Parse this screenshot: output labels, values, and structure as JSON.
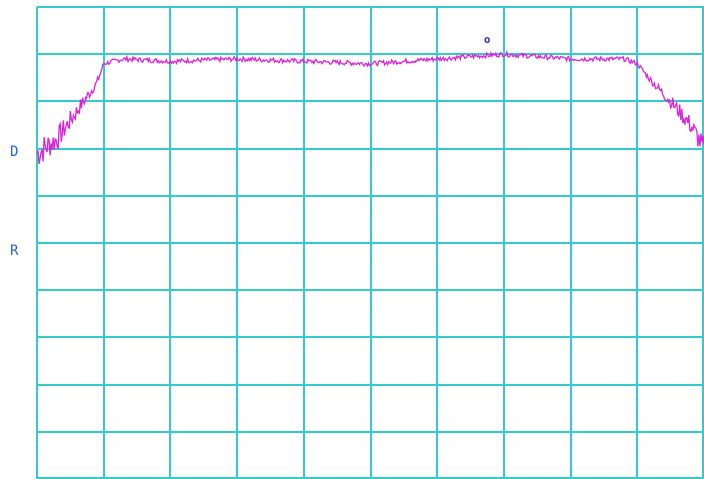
{
  "colors": {
    "background": "#ffffff",
    "grid": "#33cccc",
    "trace": "#dd22dd",
    "marker": "#2233bb",
    "label": "#2266cc"
  },
  "labels": {
    "left_1": "D",
    "left_2": "R"
  },
  "marker": {
    "symbol": "o",
    "icon": "marker-circle-icon"
  },
  "chart_data": {
    "type": "line",
    "grid": true,
    "grid_divisions": {
      "x": 10,
      "y": 10
    },
    "xlim": [
      0,
      10
    ],
    "ylim": [
      0,
      10
    ],
    "title": "",
    "xlabel": "",
    "ylabel": "",
    "series": [
      {
        "values_x": [
          0,
          0.3,
          0.6,
          0.9,
          1.0,
          1.3,
          2.0,
          3.0,
          4.0,
          5.0,
          5.5,
          6.0,
          7.0,
          8.0,
          8.8,
          9.0,
          9.2,
          9.5,
          9.8,
          10.0
        ],
        "values_y": [
          6.9,
          7.2,
          7.8,
          8.4,
          8.8,
          8.9,
          8.85,
          8.9,
          8.85,
          8.8,
          8.85,
          8.9,
          9.0,
          8.9,
          8.9,
          8.8,
          8.45,
          8.0,
          7.5,
          7.0
        ]
      }
    ],
    "marker_point": {
      "x": 6.75,
      "y": 9.3
    }
  }
}
